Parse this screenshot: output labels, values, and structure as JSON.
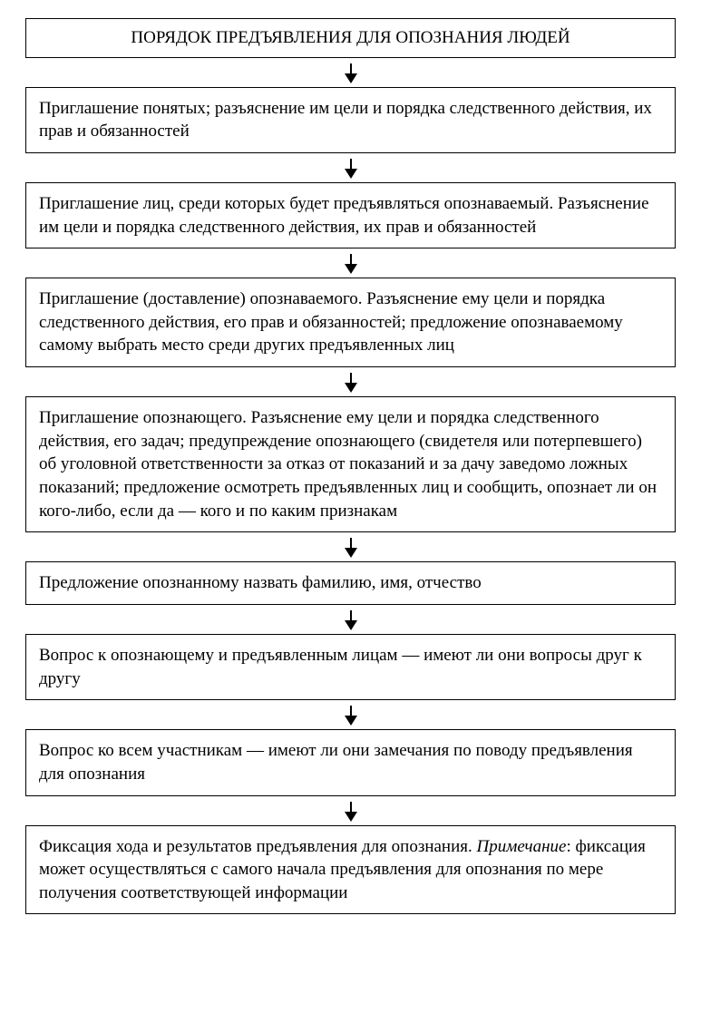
{
  "flowchart": {
    "type": "flowchart",
    "direction": "vertical",
    "box_border_color": "#000000",
    "box_border_width": 1.5,
    "box_background": "#ffffff",
    "text_color": "#000000",
    "font_size": 19,
    "font_family": "serif",
    "arrow_color": "#000000",
    "arrow_length": 32,
    "title": "ПОРЯДОК ПРЕДЪЯВЛЕНИЯ ДЛЯ ОПОЗНАНИЯ ЛЮДЕЙ",
    "steps": [
      {
        "text": "Приглашение понятых; разъяснение им цели и порядка следственного действия, их прав и обязанностей"
      },
      {
        "text": "Приглашение лиц, среди которых будет предъявляться опознаваемый. Разъяснение им цели и порядка следственного действия, их прав и обязанностей"
      },
      {
        "text": "Приглашение (доставление) опознаваемого. Разъяснение ему цели и порядка следственного действия, его прав и обязанностей; предложение опознаваемому самому выбрать место среди других предъявленных лиц"
      },
      {
        "text": "Приглашение опознающего. Разъяснение ему цели и порядка следственного действия, его задач; предупреждение опознающего (свидетеля или потерпевшего) об уголовной ответственности за отказ от показаний и за дачу заведомо ложных показаний; предложение осмотреть предъявленных лиц и сообщить, опознает ли он кого-либо, если да — кого и по каким признакам"
      },
      {
        "text": "Предложение опознанному назвать фамилию, имя, отчество"
      },
      {
        "text": "Вопрос к опознающему и предъявленным лицам — имеют ли они вопросы друг к другу"
      },
      {
        "text": "Вопрос ко всем участникам — имеют ли они замечания по поводу предъявления для опознания"
      },
      {
        "text_prefix": "Фиксация хода и результатов предъявления для опознания. ",
        "note_label": "Примечание",
        "text_suffix": ": фиксация может осуществляться с самого начала предъявления для опознания по мере получения соответствующей информации"
      }
    ]
  }
}
